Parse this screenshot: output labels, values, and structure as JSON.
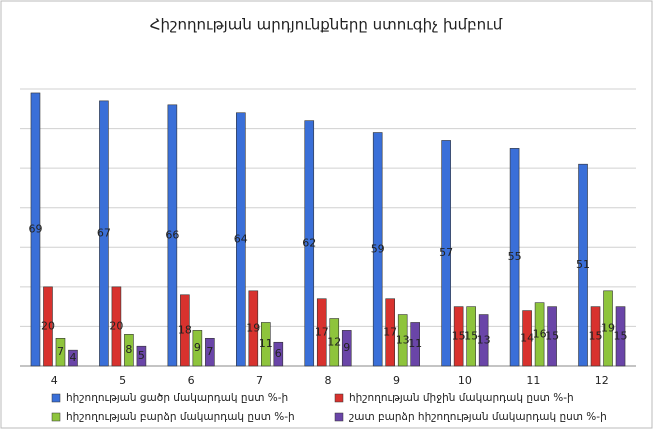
{
  "chart_data": {
    "type": "bar",
    "title": "Հիշողության արդյունքները ստուգիչ խմբում",
    "categories": [
      "4",
      "5",
      "6",
      "7",
      "8",
      "9",
      "10",
      "11",
      "12"
    ],
    "series": [
      {
        "name": "հիշողության ցածր մակարդակ ըստ %-ի",
        "color": "#3a6fd8",
        "values": [
          69,
          67,
          66,
          64,
          62,
          59,
          57,
          55,
          51
        ]
      },
      {
        "name": "հիշողության միջին մակարդակ ըստ %-ի",
        "color": "#d8322e",
        "values": [
          20,
          20,
          18,
          19,
          17,
          17,
          15,
          14,
          15
        ]
      },
      {
        "name": "հիշողության բարձր մակարդակ ըստ %-ի",
        "color": "#8ec43c",
        "values": [
          7,
          8,
          9,
          11,
          12,
          13,
          15,
          16,
          19
        ]
      },
      {
        "name": "շատ բարձր հիշողության մակարդակ ըստ %-ի",
        "color": "#6a45a8",
        "values": [
          4,
          5,
          7,
          6,
          9,
          11,
          13,
          15,
          15
        ]
      }
    ],
    "ylim": [
      0,
      70
    ],
    "yticks": [
      0,
      10,
      20,
      30,
      40,
      50,
      60,
      70
    ],
    "grid": true,
    "legend": "bottom"
  }
}
